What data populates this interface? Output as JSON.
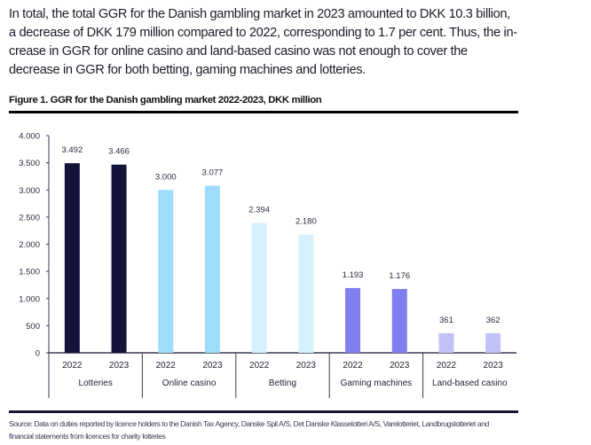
{
  "intro_text": "In total, the total GGR for the Danish gambling market in 2023 amounted to DKK 10.3 billion, a decrease of DKK 179 million compared to 2022, corresponding to 1.7 per cent. Thus, the in-crease in GGR for online casino and land-based casino was not enough to cover the decrease in GGR for both betting, gaming machines and lotteries.",
  "figure_title": "Figure 1. GGR for the Danish gambling market 2022-2023, DKK million",
  "source_text": "Source: Data on duties reported by licence holders to the Danish Tax Agency, Danske Spil A/S, Det Danske Klasselotteri A/S, Varelotteriet, Landbrugslotteriet and financial statements from licences for charity lotteries",
  "chart_data": {
    "type": "bar",
    "title": "GGR for the Danish gambling market 2022-2023, DKK million",
    "xlabel": "",
    "ylabel": "DKK million",
    "ylim": [
      0,
      4000
    ],
    "yticks": [
      0,
      500,
      1000,
      1500,
      2000,
      2500,
      3000,
      3500,
      4000
    ],
    "ytick_labels": [
      "0",
      "500",
      "1.000",
      "1.500",
      "2.000",
      "2.500",
      "3.000",
      "3.500",
      "4.000"
    ],
    "grid": false,
    "legend": "none",
    "groups": [
      {
        "name": "Lotteries",
        "color": "#14143a",
        "bars": [
          {
            "year": "2022",
            "value": 3492,
            "label": "3.492"
          },
          {
            "year": "2023",
            "value": 3466,
            "label": "3.466"
          }
        ]
      },
      {
        "name": "Online casino",
        "color": "#9ddcfb",
        "bars": [
          {
            "year": "2022",
            "value": 3000,
            "label": "3.000"
          },
          {
            "year": "2023",
            "value": 3077,
            "label": "3.077"
          }
        ]
      },
      {
        "name": "Betting",
        "color": "#d6f1fd",
        "bars": [
          {
            "year": "2022",
            "value": 2394,
            "label": "2.394"
          },
          {
            "year": "2023",
            "value": 2180,
            "label": "2.180"
          }
        ]
      },
      {
        "name": "Gaming machines",
        "color": "#7f7ff0",
        "bars": [
          {
            "year": "2022",
            "value": 1193,
            "label": "1.193"
          },
          {
            "year": "2023",
            "value": 1176,
            "label": "1.176"
          }
        ]
      },
      {
        "name": "Land-based casino",
        "color": "#c2c2f7",
        "bars": [
          {
            "year": "2022",
            "value": 361,
            "label": "361"
          },
          {
            "year": "2023",
            "value": 362,
            "label": "362"
          }
        ]
      }
    ]
  }
}
